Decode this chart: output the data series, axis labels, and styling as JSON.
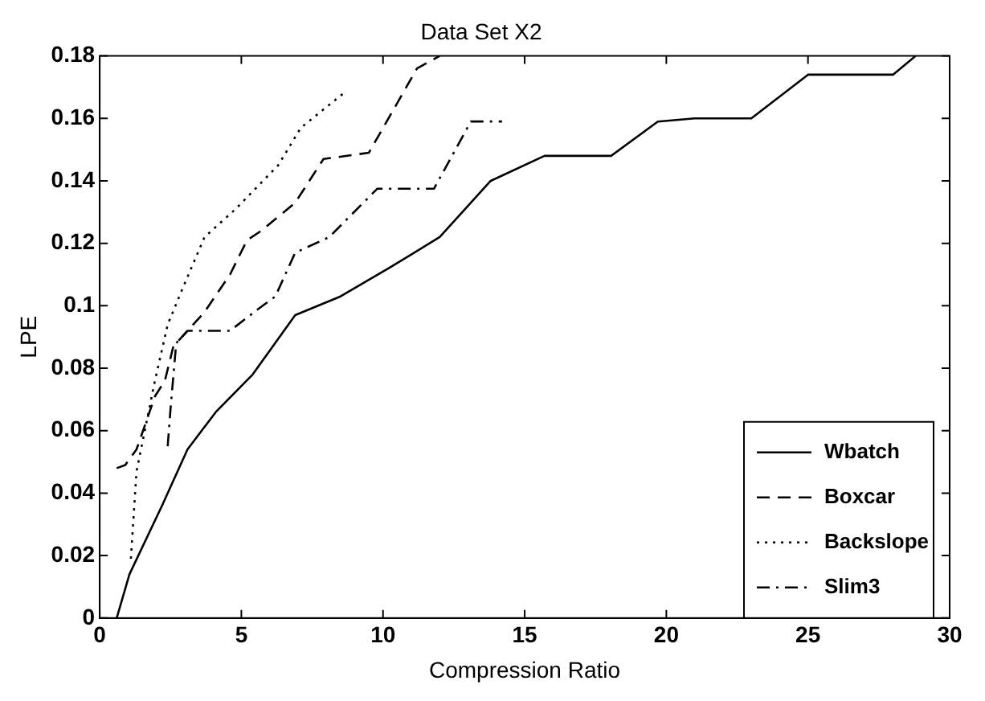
{
  "chart_data": {
    "type": "line",
    "title": "Data Set X2",
    "xlabel": "Compression Ratio",
    "ylabel": "LPE",
    "xlim": [
      0,
      30
    ],
    "xticks": [
      0,
      5,
      10,
      15,
      20,
      25,
      30
    ],
    "ylim": [
      0,
      0.18
    ],
    "yticks": [
      0,
      0.02,
      0.04,
      0.06,
      0.08,
      0.1,
      0.12,
      0.14,
      0.16,
      0.18
    ],
    "grid": false,
    "legend": "bottom right",
    "marker": "none",
    "series": [
      {
        "name": "Wbatch",
        "color": "#000000",
        "line_style": "solid",
        "x": [
          0.6,
          1.05,
          2.2,
          3.1,
          4.1,
          5.4,
          6.9,
          8.5,
          10.2,
          12.0,
          13.8,
          15.7,
          18.05,
          19.7,
          21.0,
          23.0,
          25.0,
          28.0,
          28.8
        ],
        "values": [
          0,
          0.014,
          0.036,
          0.054,
          0.066,
          0.078,
          0.097,
          0.103,
          0.112,
          0.122,
          0.14,
          0.148,
          0.148,
          0.159,
          0.16,
          0.16,
          0.174,
          0.174,
          0.18
        ]
      },
      {
        "name": "Boxcar",
        "color": "#000000",
        "line_style": "dashed",
        "x": [
          0.6,
          0.9,
          1.3,
          1.95,
          2.3,
          2.6,
          3.7,
          4.6,
          5.2,
          5.7,
          6.9,
          7.9,
          9.5,
          11.2,
          12.0
        ],
        "values": [
          0.048,
          0.049,
          0.054,
          0.071,
          0.076,
          0.087,
          0.098,
          0.11,
          0.121,
          0.124,
          0.133,
          0.147,
          0.149,
          0.176,
          0.18
        ]
      },
      {
        "name": "Backslope",
        "color": "#000000",
        "line_style": "dotted",
        "x": [
          1.1,
          1.3,
          1.95,
          2.4,
          2.9,
          3.7,
          4.8,
          6.3,
          7.1,
          8.6
        ],
        "values": [
          0.019,
          0.047,
          0.076,
          0.094,
          0.105,
          0.122,
          0.131,
          0.145,
          0.157,
          0.168
        ]
      },
      {
        "name": "Slim3",
        "color": "#000000",
        "line_style": "dashdot",
        "x": [
          2.4,
          2.5,
          2.7,
          3.1,
          4.6,
          5.6,
          6.2,
          6.9,
          8.1,
          9.8,
          11.8,
          13.1,
          14.2
        ],
        "values": [
          0.055,
          0.067,
          0.088,
          0.092,
          0.092,
          0.099,
          0.103,
          0.117,
          0.122,
          0.1375,
          0.1375,
          0.159,
          0.159
        ]
      }
    ]
  }
}
